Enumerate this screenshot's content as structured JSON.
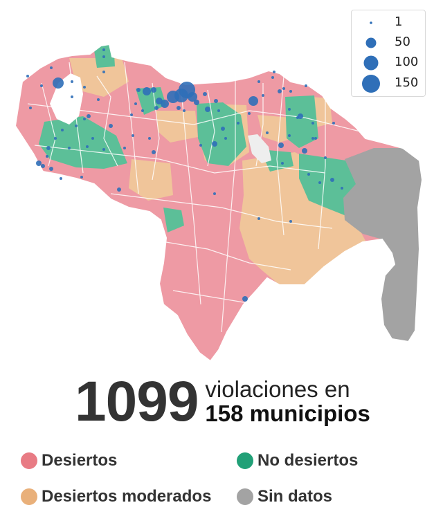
{
  "colors": {
    "desiertos": "#ee9aa4",
    "desiertos_moderados": "#f0c59a",
    "no_desiertos": "#5cbf98",
    "sin_datos": "#a3a3a3",
    "bubble": "#2f6fb8",
    "border": "#ffffff"
  },
  "size_legend": {
    "entries": [
      {
        "label": "1",
        "value": 1
      },
      {
        "label": "50",
        "value": 50
      },
      {
        "label": "100",
        "value": 100
      },
      {
        "label": "150",
        "value": 150
      }
    ]
  },
  "headline": {
    "number": "1099",
    "line1": "violaciones en",
    "line2": "158 municipios"
  },
  "legend": {
    "items": [
      {
        "key": "desiertos",
        "label": "Desiertos",
        "color": "#e87b84"
      },
      {
        "key": "no_desiertos",
        "label": "No desiertos",
        "color": "#21a077"
      },
      {
        "key": "desiertos_moderados",
        "label": "Desiertos moderados",
        "color": "#e9b07a"
      },
      {
        "key": "sin_datos",
        "label": "Sin datos",
        "color": "#a3a3a3"
      }
    ]
  }
}
